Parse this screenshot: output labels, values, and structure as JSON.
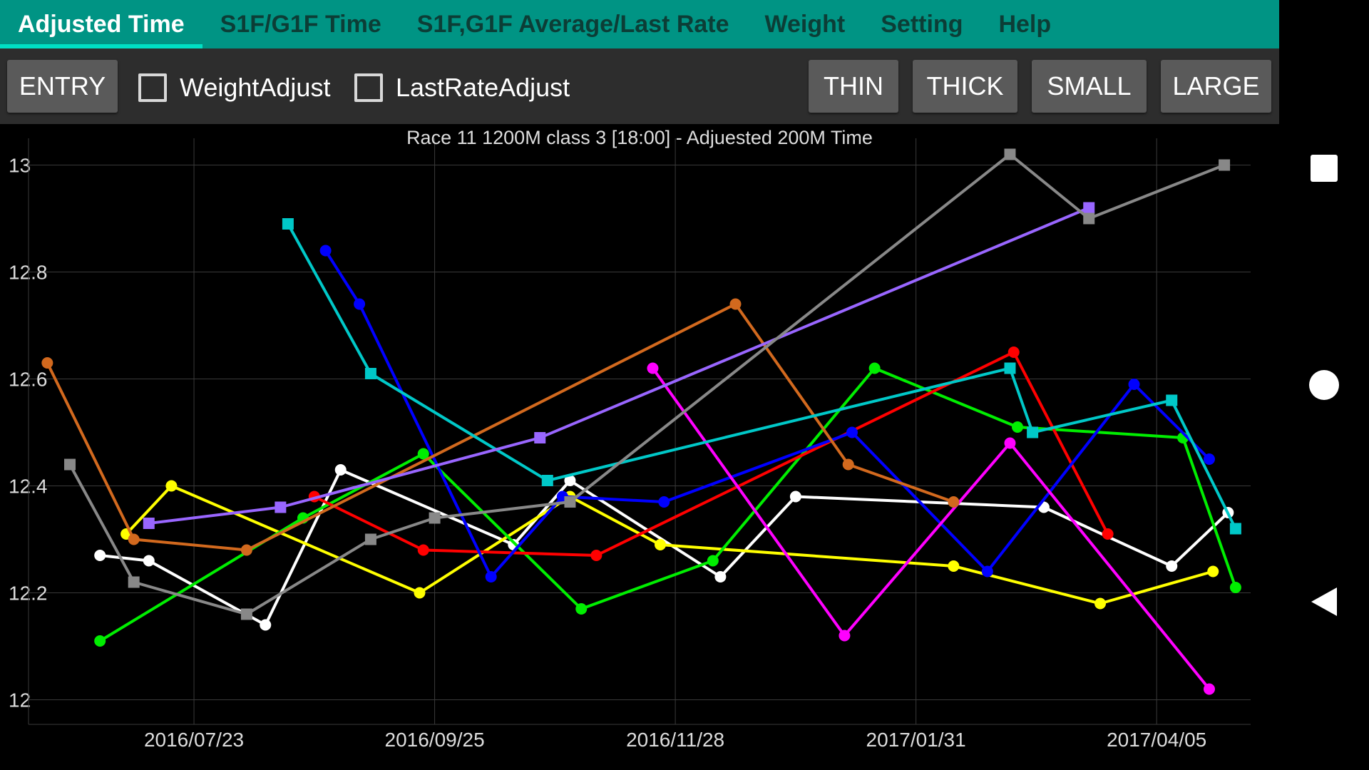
{
  "tabs": [
    {
      "label": "Adjusted Time",
      "active": true
    },
    {
      "label": "S1F/G1F Time"
    },
    {
      "label": "S1F,G1F Average/Last Rate"
    },
    {
      "label": "Weight"
    },
    {
      "label": "Setting"
    },
    {
      "label": "Help"
    }
  ],
  "toolbar": {
    "entry_label": "ENTRY",
    "weight_adjust_label": "WeightAdjust",
    "weight_adjust_checked": false,
    "last_rate_adjust_label": "LastRateAdjust",
    "last_rate_adjust_checked": false,
    "thin_label": "THIN",
    "thick_label": "THICK",
    "small_label": "SMALL",
    "large_label": "LARGE"
  },
  "navbar": {
    "icons": [
      "square-icon",
      "circle-icon",
      "back-triangle-icon"
    ]
  },
  "chart_data": {
    "type": "line",
    "title": "Race 11 1200M  class 3   [18:00] - Adjuested 200M Time",
    "xlabel": "",
    "ylabel": "",
    "xlim": [
      "2016-06-09",
      "2017-04-30"
    ],
    "ylim": [
      11.97,
      13.05
    ],
    "yticks": [
      12,
      12.2,
      12.4,
      12.6,
      12.8,
      13
    ],
    "ytick_labels": [
      "12",
      "12.2",
      "12.4",
      "12.6",
      "12.8",
      "13"
    ],
    "xticks": [
      "2016-07-23",
      "2016-09-25",
      "2016-11-28",
      "2017-01-31",
      "2017-04-05"
    ],
    "xtick_labels": [
      "2016/07/23",
      "2016/09/25",
      "2016/11/28",
      "2017/01/31",
      "2017/04/05"
    ],
    "grid": true,
    "background": "#000000",
    "series": [
      {
        "color": "#ffffff",
        "marker": "circle",
        "points": [
          [
            "2016-06-28",
            12.27
          ],
          [
            "2016-07-11",
            12.26
          ],
          [
            "2016-08-11",
            12.14
          ],
          [
            "2016-08-31",
            12.43
          ],
          [
            "2016-10-16",
            12.29
          ],
          [
            "2016-10-31",
            12.41
          ],
          [
            "2016-12-10",
            12.23
          ],
          [
            "2016-12-30",
            12.38
          ],
          [
            "2017-03-06",
            12.36
          ],
          [
            "2017-04-09",
            12.25
          ],
          [
            "2017-04-24",
            12.35
          ]
        ]
      },
      {
        "color": "#ffff00",
        "marker": "circle",
        "points": [
          [
            "2016-07-05",
            12.31
          ],
          [
            "2016-07-17",
            12.4
          ],
          [
            "2016-09-21",
            12.2
          ],
          [
            "2016-10-31",
            12.38
          ],
          [
            "2016-11-24",
            12.29
          ],
          [
            "2017-02-10",
            12.25
          ],
          [
            "2017-03-21",
            12.18
          ],
          [
            "2017-04-20",
            12.24
          ]
        ]
      },
      {
        "color": "#00ee00",
        "marker": "circle",
        "points": [
          [
            "2016-06-28",
            12.11
          ],
          [
            "2016-08-21",
            12.34
          ],
          [
            "2016-09-22",
            12.46
          ],
          [
            "2016-11-03",
            12.17
          ],
          [
            "2016-12-08",
            12.26
          ],
          [
            "2017-01-20",
            12.62
          ],
          [
            "2017-02-27",
            12.51
          ],
          [
            "2017-04-12",
            12.49
          ],
          [
            "2017-04-26",
            12.21
          ]
        ]
      },
      {
        "color": "#ff0000",
        "marker": "circle",
        "points": [
          [
            "2016-08-24",
            12.38
          ],
          [
            "2016-09-22",
            12.28
          ],
          [
            "2016-11-07",
            12.27
          ],
          [
            "2017-02-26",
            12.65
          ],
          [
            "2017-03-23",
            12.31
          ]
        ]
      },
      {
        "color": "#0000ff",
        "marker": "circle",
        "points": [
          [
            "2016-08-27",
            12.84
          ],
          [
            "2016-09-05",
            12.74
          ],
          [
            "2016-10-10",
            12.23
          ],
          [
            "2016-10-29",
            12.38
          ],
          [
            "2016-11-25",
            12.37
          ],
          [
            "2017-01-14",
            12.5
          ],
          [
            "2017-02-19",
            12.24
          ],
          [
            "2017-03-30",
            12.59
          ],
          [
            "2017-04-19",
            12.45
          ]
        ]
      },
      {
        "color": "#ff00ff",
        "marker": "circle",
        "points": [
          [
            "2016-11-22",
            12.62
          ],
          [
            "2017-01-12",
            12.12
          ],
          [
            "2017-02-25",
            12.48
          ],
          [
            "2017-04-19",
            12.02
          ]
        ]
      },
      {
        "color": "#d2691e",
        "marker": "circle",
        "points": [
          [
            "2016-06-14",
            12.63
          ],
          [
            "2016-07-07",
            12.3
          ],
          [
            "2016-08-06",
            12.28
          ],
          [
            "2016-12-14",
            12.74
          ],
          [
            "2017-01-13",
            12.44
          ],
          [
            "2017-02-10",
            12.37
          ]
        ]
      },
      {
        "color": "#00c8c8",
        "marker": "square",
        "points": [
          [
            "2016-08-17",
            12.89
          ],
          [
            "2016-09-08",
            12.61
          ],
          [
            "2016-10-25",
            12.41
          ],
          [
            "2017-02-25",
            12.62
          ],
          [
            "2017-03-03",
            12.5
          ],
          [
            "2017-04-09",
            12.56
          ],
          [
            "2017-04-26",
            12.32
          ]
        ]
      },
      {
        "color": "#9966ff",
        "marker": "square",
        "points": [
          [
            "2016-07-11",
            12.33
          ],
          [
            "2016-08-15",
            12.36
          ],
          [
            "2016-10-23",
            12.49
          ],
          [
            "2017-03-18",
            12.92
          ]
        ]
      },
      {
        "color": "#888888",
        "marker": "square",
        "points": [
          [
            "2016-06-20",
            12.44
          ],
          [
            "2016-07-07",
            12.22
          ],
          [
            "2016-08-06",
            12.16
          ],
          [
            "2016-09-08",
            12.3
          ],
          [
            "2016-09-25",
            12.34
          ],
          [
            "2016-10-31",
            12.37
          ],
          [
            "2017-02-25",
            13.02
          ],
          [
            "2017-03-18",
            12.9
          ],
          [
            "2017-04-23",
            13.0
          ]
        ]
      }
    ]
  }
}
